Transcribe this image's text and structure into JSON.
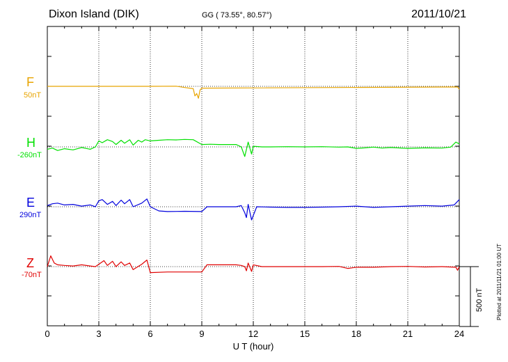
{
  "header": {
    "station": "Dixon Island (DIK)",
    "coords": "GG ( 73.55°,  80.57°)",
    "date": "2011/10/21"
  },
  "footnote": "Plotted at 2011/11/21 01:00 UT",
  "colors": {
    "F": "#e8a400",
    "H": "#00e000",
    "E": "#0000dd",
    "Z": "#e00000"
  },
  "chart_data": {
    "type": "line",
    "xlabel": "U T (hour)",
    "xlim": [
      0,
      24
    ],
    "x_ticks": [
      "0",
      "3",
      "6",
      "9",
      "12",
      "15",
      "18",
      "21",
      "24"
    ],
    "scale_bar": "500 nT",
    "components": [
      {
        "name": "F",
        "base": "50nT"
      },
      {
        "name": "H",
        "base": "-260nT"
      },
      {
        "name": "E",
        "base": "290nT"
      },
      {
        "name": "Z",
        "base": "-70nT"
      }
    ],
    "series": [
      {
        "name": "F",
        "x": [
          0,
          2,
          4,
          6,
          7.5,
          8.0,
          8.5,
          8.6,
          8.7,
          8.8,
          8.9,
          9.0,
          23.9,
          24.0
        ],
        "y": [
          0,
          0,
          0,
          0,
          1,
          -10,
          -20,
          -80,
          -60,
          -100,
          -30,
          -15,
          -5,
          -25
        ]
      },
      {
        "name": "H",
        "x": [
          0,
          0.3,
          0.6,
          1.0,
          1.5,
          2.0,
          2.5,
          2.8,
          3.0,
          3.2,
          3.5,
          3.8,
          4.0,
          4.3,
          4.5,
          4.8,
          5.0,
          5.3,
          5.5,
          5.7,
          6.0,
          6.5,
          7.0,
          7.5,
          8.0,
          8.5,
          9.0,
          9.5,
          10,
          11,
          11.3,
          11.5,
          11.7,
          11.9,
          12.0,
          12.5,
          13,
          14,
          15,
          16,
          17,
          17.5,
          18,
          18.5,
          19,
          19.5,
          20,
          21,
          22,
          23,
          23.5,
          23.8,
          24
        ],
        "y": [
          -20,
          -10,
          -30,
          -15,
          -25,
          -5,
          -20,
          0,
          50,
          35,
          60,
          45,
          20,
          55,
          30,
          60,
          15,
          55,
          40,
          60,
          50,
          55,
          60,
          58,
          62,
          60,
          20,
          22,
          20,
          20,
          0,
          -80,
          40,
          -60,
          5,
          0,
          0,
          2,
          0,
          2,
          -2,
          0,
          -12,
          -8,
          -2,
          -10,
          -5,
          -12,
          -8,
          -10,
          -2,
          40,
          25
        ]
      },
      {
        "name": "E",
        "x": [
          0,
          0.3,
          0.6,
          1.0,
          1.5,
          2.0,
          2.5,
          2.8,
          3.0,
          3.2,
          3.5,
          3.8,
          4.0,
          4.3,
          4.5,
          4.8,
          5.0,
          5.5,
          5.8,
          6.0,
          6.5,
          7.0,
          8.0,
          9.0,
          9.3,
          10,
          11,
          11.3,
          11.5,
          11.6,
          11.7,
          11.9,
          12.2,
          13,
          14,
          15,
          16,
          17,
          18,
          19,
          20,
          21,
          22,
          23,
          23.7,
          24
        ],
        "y": [
          10,
          25,
          30,
          15,
          20,
          5,
          15,
          0,
          50,
          60,
          20,
          45,
          10,
          55,
          25,
          60,
          0,
          30,
          65,
          0,
          -35,
          -40,
          -38,
          -40,
          0,
          0,
          0,
          10,
          -50,
          -90,
          20,
          -110,
          0,
          -3,
          -5,
          -5,
          -3,
          0,
          5,
          -5,
          0,
          5,
          10,
          5,
          15,
          60
        ]
      },
      {
        "name": "Z",
        "x": [
          0,
          0.2,
          0.4,
          0.6,
          1.0,
          1.5,
          2.0,
          2.5,
          2.8,
          3.0,
          3.3,
          3.5,
          3.8,
          4.0,
          4.3,
          4.5,
          4.8,
          5.0,
          5.5,
          5.8,
          6.0,
          7.0,
          8.0,
          9.0,
          9.3,
          10,
          11,
          11.3,
          11.5,
          11.6,
          11.7,
          11.9,
          12.0,
          12.5,
          13,
          14,
          15,
          16,
          17,
          17.5,
          18,
          19,
          20,
          21,
          22,
          23,
          23.8,
          23.9,
          24
        ],
        "y": [
          0,
          90,
          30,
          15,
          10,
          5,
          15,
          5,
          0,
          20,
          50,
          10,
          45,
          0,
          40,
          10,
          30,
          -25,
          20,
          55,
          -50,
          -45,
          -45,
          -45,
          15,
          15,
          15,
          10,
          0,
          -35,
          30,
          -40,
          15,
          0,
          0,
          0,
          0,
          0,
          2,
          -15,
          -5,
          -5,
          0,
          2,
          -3,
          0,
          -5,
          -30,
          0
        ]
      }
    ]
  }
}
